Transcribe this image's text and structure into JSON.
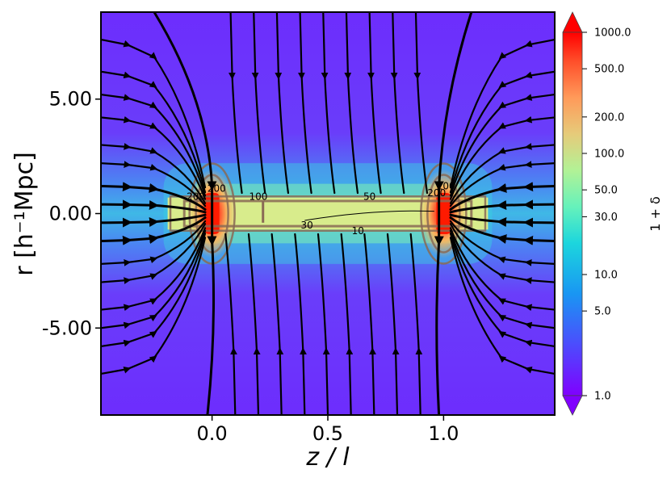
{
  "chart_data": {
    "type": "heatmap",
    "title": "",
    "xlabel": "z / l",
    "ylabel": "r [h⁻¹Mpc]",
    "xlim": [
      -0.48,
      1.48
    ],
    "ylim": [
      -8.8,
      8.8
    ],
    "x_ticks": [
      {
        "value": 0.0,
        "label": "0.0"
      },
      {
        "value": 0.5,
        "label": "0.5"
      },
      {
        "value": 1.0,
        "label": "1.0"
      }
    ],
    "y_ticks": [
      {
        "value": 5.0,
        "label": "5.00"
      },
      {
        "value": 0.0,
        "label": "0.00"
      },
      {
        "value": -5.0,
        "label": "-5.00"
      }
    ],
    "grid": false,
    "field": {
      "nodes": [
        {
          "z": 0.0,
          "r": 0.0,
          "peak": 1000
        },
        {
          "z": 1.0,
          "r": 0.0,
          "peak": 1000
        }
      ],
      "filament": {
        "z_from": 0.0,
        "z_to": 1.0,
        "r_halfwidth": 0.7,
        "density": 100
      },
      "background_min": 1.0
    },
    "contour_labels": [
      {
        "text": "200",
        "z": -0.07,
        "r": 0.6
      },
      {
        "text": "200",
        "z": 0.02,
        "r": 0.95
      },
      {
        "text": "100",
        "z": 0.2,
        "r": 0.6
      },
      {
        "text": "50",
        "z": 0.68,
        "r": 0.6
      },
      {
        "text": "30",
        "z": 0.41,
        "r": -0.65
      },
      {
        "text": "10",
        "z": 0.63,
        "r": -0.9
      },
      {
        "text": "200",
        "z": 0.97,
        "r": 0.75
      },
      {
        "text": "200",
        "z": 1.01,
        "r": 1.05
      }
    ],
    "colorbar": {
      "label": "1 + δ",
      "scale": "log",
      "range": [
        1.0,
        1000.0
      ],
      "colormap": "rainbow",
      "extend": "both",
      "ticks": [
        "1000.0",
        "500.0",
        "200.0",
        "100.0",
        "50.0",
        "30.0",
        "10.0",
        "5.0",
        "1.0"
      ],
      "tick_values": [
        1000,
        500,
        200,
        100,
        50,
        30,
        10,
        5,
        1
      ]
    },
    "streamlines": "velocity field converging onto nodes at z=0 and z=1, with separatrices near each node"
  }
}
